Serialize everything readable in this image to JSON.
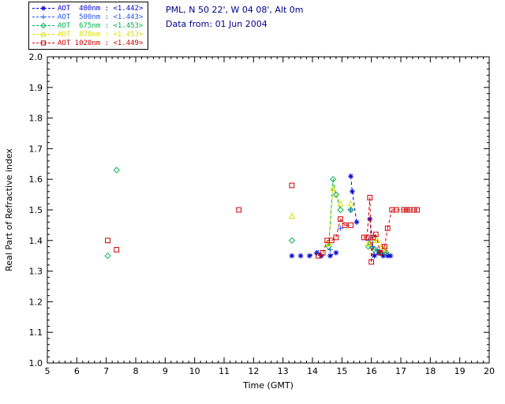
{
  "header": {
    "location_line": "PML, N 50 22', W 04 08', Alt 0m",
    "date_line": "Data from: 01 Jun 2004",
    "text_color": "#00008b"
  },
  "chart_data": {
    "type": "scatter",
    "title": "",
    "xlabel": "Time (GMT)",
    "ylabel": "Real Part of Refractive index",
    "xlim": [
      5,
      20
    ],
    "xstep": 1,
    "ylim": [
      1.0,
      2.0
    ],
    "ystep": 0.1,
    "grid": false,
    "legend_position": "top-left-outside",
    "connect_gap_max": 0.28,
    "line_style": "dashed",
    "axis_color": "#000000",
    "series": [
      {
        "name": "AOT  400nm",
        "retrieval": "<1.442>",
        "color": "#0000cd",
        "marker": "asterisk",
        "points": [
          [
            13.3,
            1.35
          ],
          [
            13.6,
            1.35
          ],
          [
            13.9,
            1.35
          ],
          [
            14.15,
            1.36
          ],
          [
            14.3,
            1.35
          ],
          [
            14.6,
            1.35
          ],
          [
            14.8,
            1.36
          ],
          [
            15.3,
            1.61
          ],
          [
            15.35,
            1.56
          ],
          [
            15.5,
            1.46
          ],
          [
            15.95,
            1.47
          ],
          [
            16.1,
            1.35
          ],
          [
            16.25,
            1.36
          ],
          [
            16.4,
            1.35
          ],
          [
            16.55,
            1.35
          ],
          [
            16.65,
            1.35
          ]
        ]
      },
      {
        "name": "AOT  500nm",
        "retrieval": "<1.443>",
        "color": "#2255ee",
        "marker": "plus",
        "points": [
          [
            14.2,
            1.36
          ],
          [
            14.6,
            1.37
          ],
          [
            14.95,
            1.44
          ],
          [
            15.3,
            1.5
          ],
          [
            15.9,
            1.4
          ],
          [
            16.05,
            1.38
          ],
          [
            16.2,
            1.37
          ],
          [
            16.35,
            1.36
          ],
          [
            16.5,
            1.36
          ]
        ]
      },
      {
        "name": "AOT  675nm",
        "retrieval": "<1.453>",
        "color": "#00b050",
        "marker": "diamond",
        "points": [
          [
            7.05,
            1.35
          ],
          [
            7.35,
            1.63
          ],
          [
            13.3,
            1.4
          ],
          [
            14.55,
            1.38
          ],
          [
            14.7,
            1.6
          ],
          [
            14.8,
            1.55
          ],
          [
            14.95,
            1.5
          ],
          [
            15.3,
            1.5
          ],
          [
            15.9,
            1.38
          ],
          [
            16.1,
            1.37
          ],
          [
            16.3,
            1.36
          ],
          [
            16.5,
            1.36
          ]
        ]
      },
      {
        "name": "AOT  870nm",
        "retrieval": "<1.453>",
        "color": "#dede00",
        "marker": "triangle",
        "points": [
          [
            13.3,
            1.48
          ],
          [
            14.55,
            1.39
          ],
          [
            14.7,
            1.57
          ],
          [
            14.95,
            1.52
          ],
          [
            15.3,
            1.52
          ],
          [
            15.9,
            1.39
          ],
          [
            16.05,
            1.4
          ],
          [
            16.2,
            1.4
          ],
          [
            16.35,
            1.38
          ],
          [
            16.5,
            1.37
          ]
        ]
      },
      {
        "name": "AOT 1020nm",
        "retrieval": "<1.449>",
        "color": "#cc0000",
        "marker": "square",
        "points": [
          [
            7.05,
            1.4
          ],
          [
            7.35,
            1.37
          ],
          [
            11.5,
            1.5
          ],
          [
            13.3,
            1.58
          ],
          [
            14.2,
            1.35
          ],
          [
            14.35,
            1.36
          ],
          [
            14.5,
            1.4
          ],
          [
            14.65,
            1.4
          ],
          [
            14.8,
            1.41
          ],
          [
            14.95,
            1.47
          ],
          [
            15.1,
            1.45
          ],
          [
            15.3,
            1.45
          ],
          [
            15.75,
            1.41
          ],
          [
            15.85,
            1.41
          ],
          [
            15.95,
            1.54
          ],
          [
            16.0,
            1.33
          ],
          [
            16.05,
            1.41
          ],
          [
            16.15,
            1.42
          ],
          [
            16.3,
            1.36
          ],
          [
            16.45,
            1.38
          ],
          [
            16.55,
            1.44
          ],
          [
            16.7,
            1.5
          ],
          [
            16.85,
            1.5
          ],
          [
            17.1,
            1.5
          ],
          [
            17.2,
            1.5
          ],
          [
            17.3,
            1.5
          ],
          [
            17.45,
            1.5
          ],
          [
            17.55,
            1.5
          ]
        ]
      }
    ]
  }
}
